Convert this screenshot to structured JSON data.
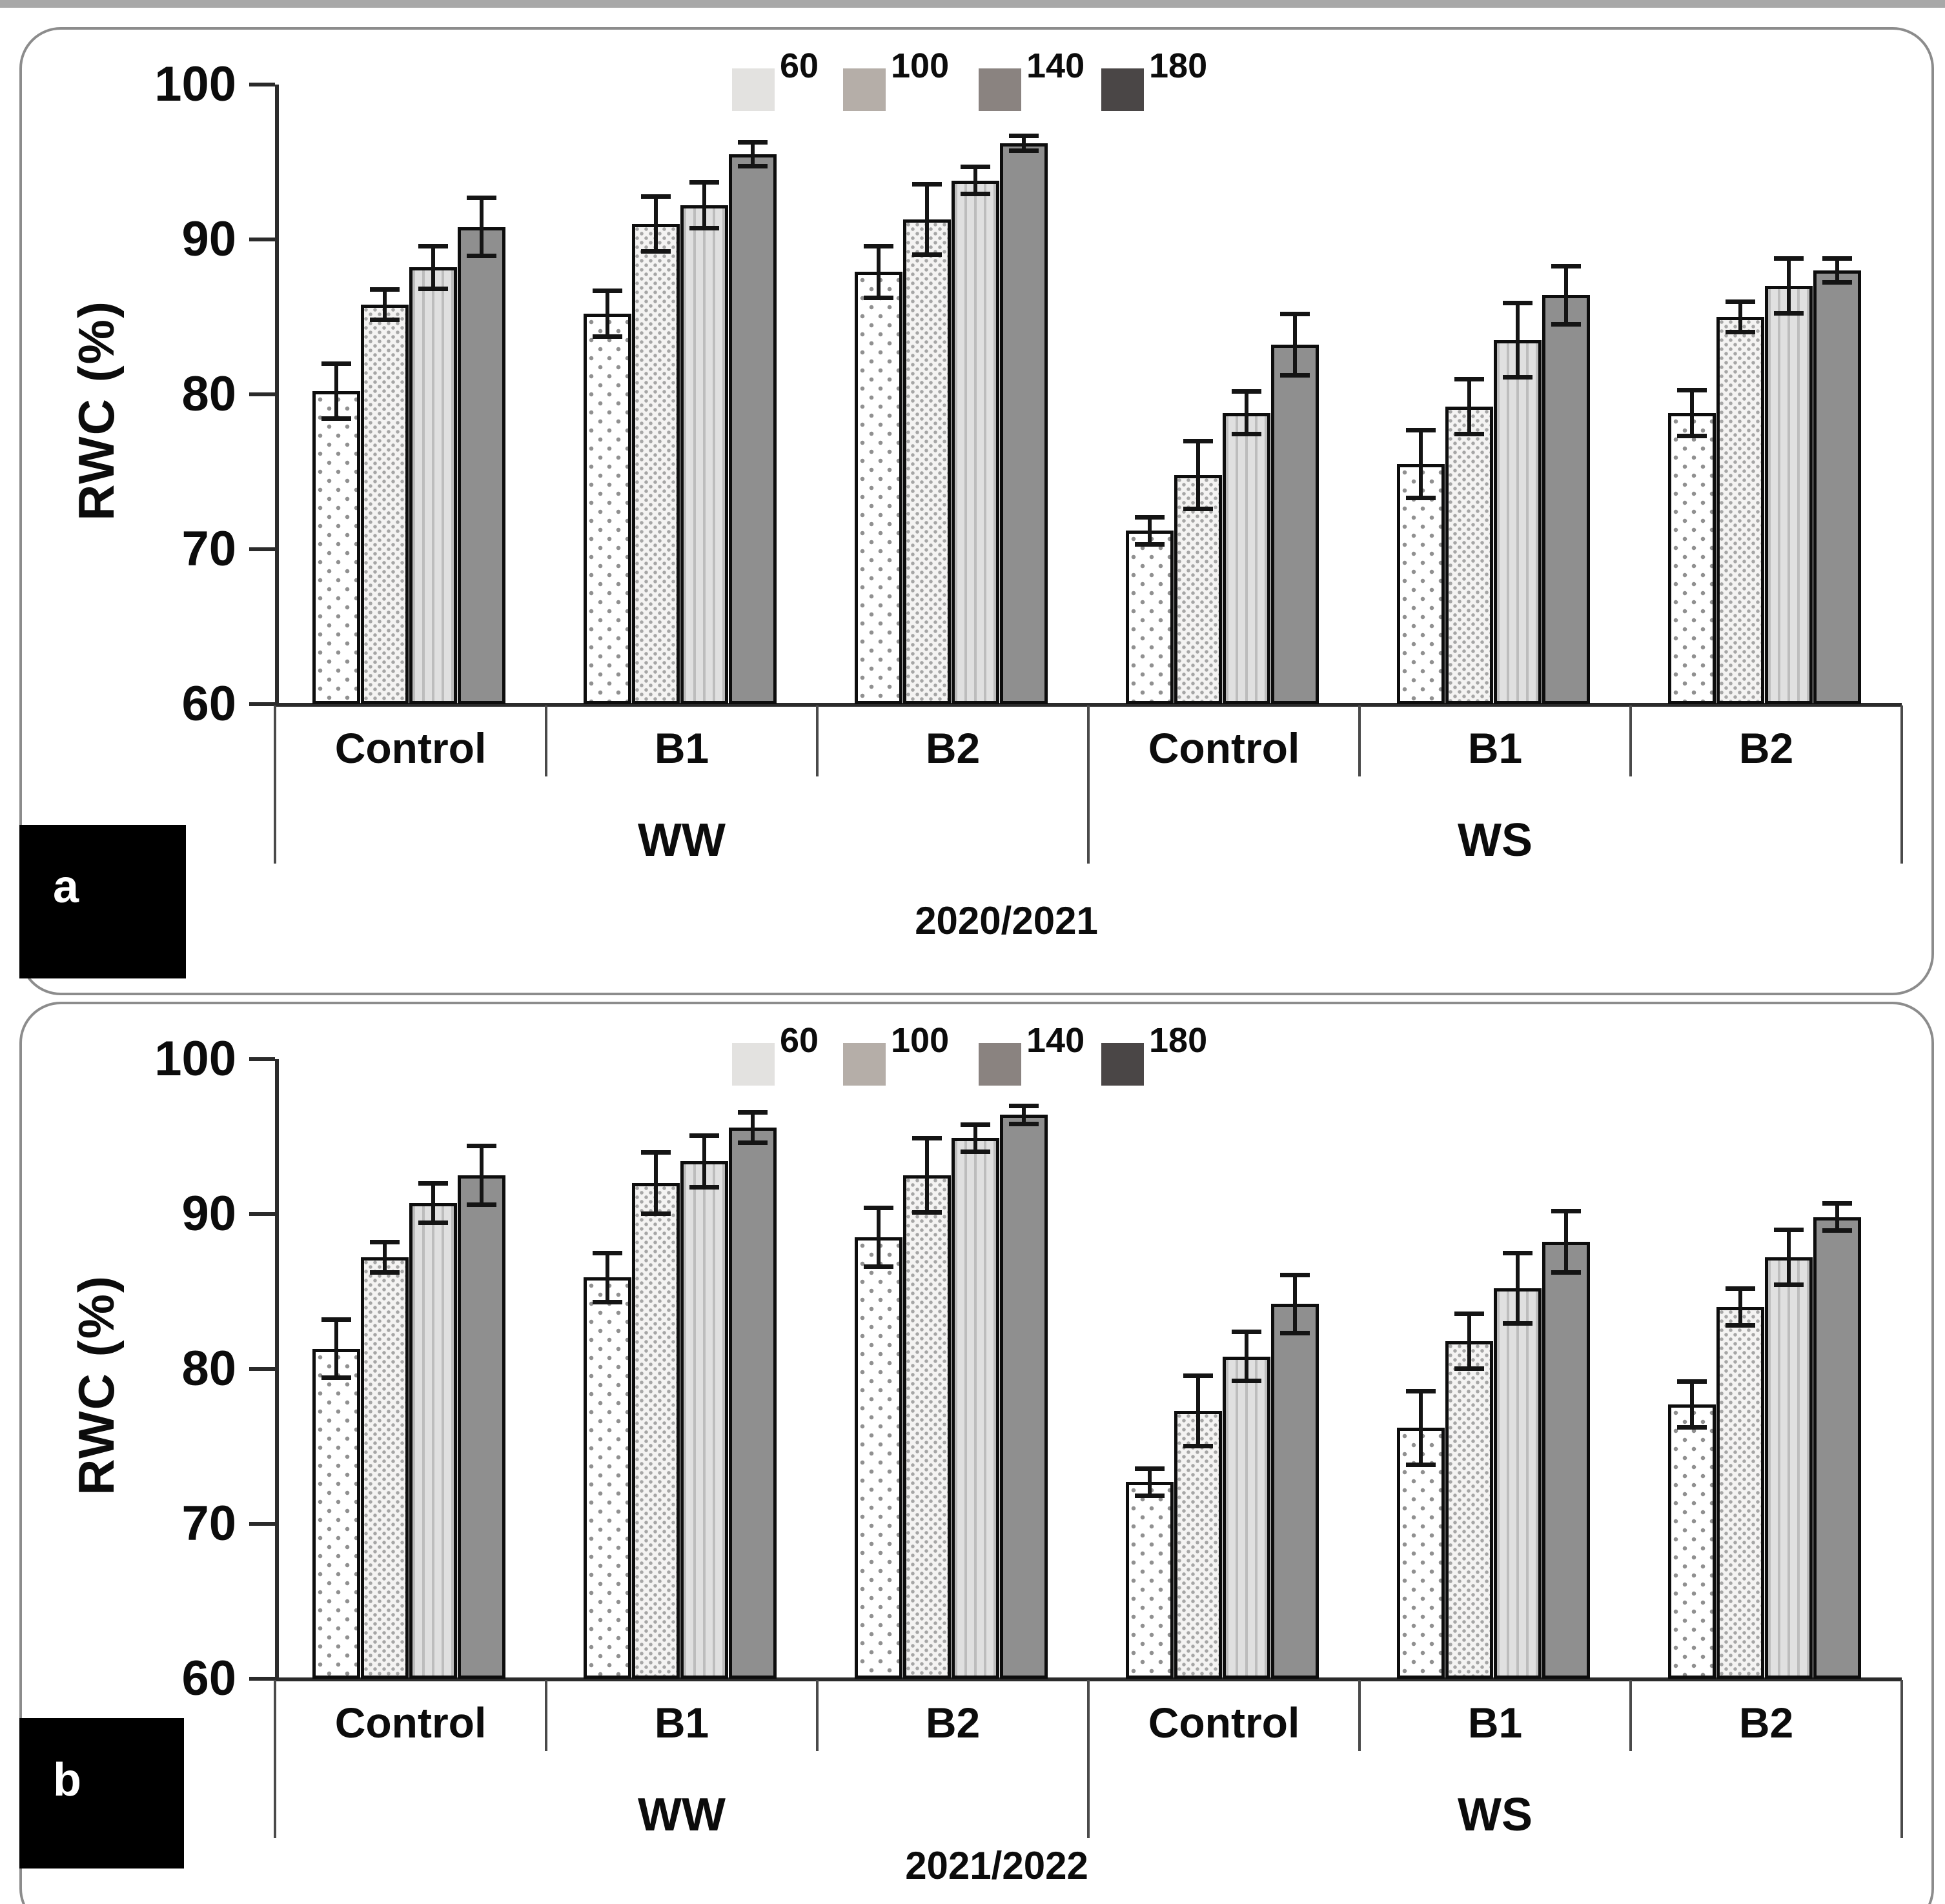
{
  "figure": {
    "panel_letters": [
      "a",
      "b"
    ]
  },
  "chart_data": [
    {
      "panel_label": "a",
      "type": "bar",
      "title": "2020/2021",
      "ylabel": "RWC (%)",
      "ylim": [
        60,
        100
      ],
      "yticks": [
        100,
        90,
        80,
        70,
        60
      ],
      "grid": false,
      "legend_position": "top-center",
      "legend": [
        {
          "label": "60",
          "color": "#e3e2e0"
        },
        {
          "label": "100",
          "color": "#b5aea8"
        },
        {
          "label": "140",
          "color": "#8a8380"
        },
        {
          "label": "180",
          "color": "#4a4646"
        }
      ],
      "group_labels": [
        "WW",
        "WS"
      ],
      "categories": [
        "Control",
        "B1",
        "B2",
        "Control",
        "B1",
        "B2"
      ],
      "series": [
        {
          "name": "60",
          "values": [
            80.2,
            85.2,
            87.9,
            71.2,
            75.5,
            78.8
          ],
          "errors": [
            1.8,
            1.5,
            1.7,
            0.9,
            2.2,
            1.5
          ]
        },
        {
          "name": "100",
          "values": [
            85.8,
            91.0,
            91.3,
            74.8,
            79.2,
            85.0
          ],
          "errors": [
            1.0,
            1.8,
            2.3,
            2.2,
            1.8,
            1.0
          ]
        },
        {
          "name": "140",
          "values": [
            88.2,
            92.2,
            93.8,
            78.8,
            83.5,
            87.0
          ],
          "errors": [
            1.4,
            1.5,
            0.9,
            1.4,
            2.4,
            1.8
          ]
        },
        {
          "name": "180",
          "values": [
            90.8,
            95.5,
            96.2,
            83.2,
            86.4,
            88.0
          ],
          "errors": [
            1.9,
            0.8,
            0.5,
            2.0,
            1.9,
            0.8
          ]
        }
      ]
    },
    {
      "panel_label": "b",
      "type": "bar",
      "title": "2021/2022",
      "ylabel": "RWC (%)",
      "ylim": [
        60,
        100
      ],
      "yticks": [
        100,
        90,
        80,
        70,
        60
      ],
      "grid": false,
      "legend_position": "top-center",
      "legend": [
        {
          "label": "60",
          "color": "#e3e2e0"
        },
        {
          "label": "100",
          "color": "#b5aea8"
        },
        {
          "label": "140",
          "color": "#8a8380"
        },
        {
          "label": "180",
          "color": "#4a4646"
        }
      ],
      "group_labels": [
        "WW",
        "WS"
      ],
      "categories": [
        "Control",
        "B1",
        "B2",
        "Control",
        "B1",
        "B2"
      ],
      "series": [
        {
          "name": "60",
          "values": [
            81.3,
            85.9,
            88.5,
            72.7,
            76.2,
            77.7
          ],
          "errors": [
            1.9,
            1.6,
            1.9,
            0.9,
            2.4,
            1.5
          ]
        },
        {
          "name": "100",
          "values": [
            87.2,
            92.0,
            92.5,
            77.3,
            81.8,
            84.0
          ],
          "errors": [
            1.0,
            2.0,
            2.4,
            2.3,
            1.8,
            1.2
          ]
        },
        {
          "name": "140",
          "values": [
            90.7,
            93.4,
            94.9,
            80.8,
            85.2,
            87.2
          ],
          "errors": [
            1.3,
            1.7,
            0.9,
            1.6,
            2.3,
            1.8
          ]
        },
        {
          "name": "180",
          "values": [
            92.5,
            95.6,
            96.4,
            84.2,
            88.2,
            89.8
          ],
          "errors": [
            1.9,
            1.0,
            0.6,
            1.9,
            2.0,
            0.9
          ]
        }
      ]
    }
  ]
}
